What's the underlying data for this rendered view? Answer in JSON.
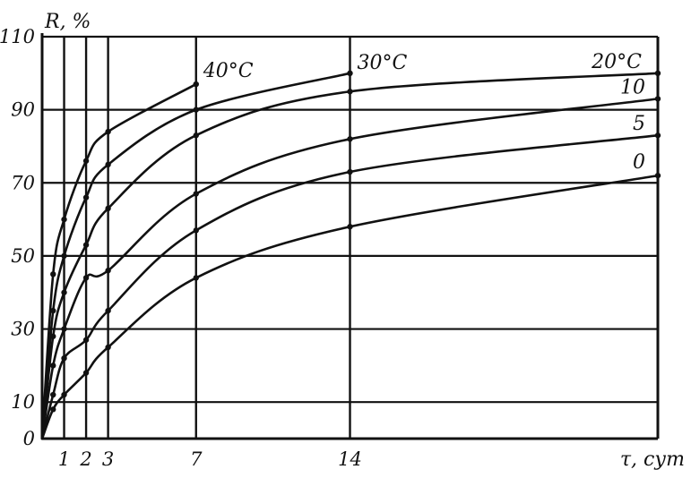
{
  "chart_data": {
    "type": "line",
    "title": "",
    "ylabel": "R, %",
    "xlabel": "τ, сут",
    "xlim": [
      0,
      28
    ],
    "ylim": [
      0,
      110
    ],
    "x_ticks": [
      1,
      2,
      3,
      7,
      14
    ],
    "x_tick_labels": [
      "1",
      "2",
      "3",
      "7",
      "14"
    ],
    "y_ticks": [
      0,
      10,
      30,
      50,
      70,
      90,
      110
    ],
    "y_tick_labels": [
      "0",
      "10",
      "30",
      "50",
      "70",
      "90",
      "110"
    ],
    "horizontal_grid": [
      10,
      30,
      50,
      70,
      90,
      110
    ],
    "vertical_grid": [
      1,
      2,
      3,
      7,
      14
    ],
    "grid": true,
    "series": [
      {
        "name": "40°C",
        "x": [
          0,
          0.5,
          1,
          2,
          3,
          7
        ],
        "y": [
          0,
          45,
          60,
          76,
          84,
          97
        ]
      },
      {
        "name": "30°C",
        "x": [
          0,
          0.5,
          1,
          2,
          3,
          7,
          14
        ],
        "y": [
          0,
          35,
          50,
          66,
          75,
          90,
          100
        ]
      },
      {
        "name": "20°C",
        "x": [
          0,
          0.5,
          1,
          2,
          3,
          7,
          14,
          28
        ],
        "y": [
          0,
          28,
          40,
          53,
          63,
          83,
          95,
          100
        ]
      },
      {
        "name": "10",
        "x": [
          0,
          0.5,
          1,
          2,
          3,
          7,
          14,
          28
        ],
        "y": [
          0,
          20,
          30,
          44,
          46,
          67,
          82,
          93
        ]
      },
      {
        "name": "5",
        "x": [
          0,
          0.5,
          1,
          2,
          3,
          7,
          14,
          28
        ],
        "y": [
          0,
          12,
          22,
          27,
          35,
          57,
          73,
          83
        ]
      },
      {
        "name": "0",
        "x": [
          0,
          0.5,
          1,
          2,
          3,
          7,
          14,
          28
        ],
        "y": [
          0,
          8,
          12,
          18,
          25,
          44,
          58,
          72
        ]
      }
    ],
    "series_label_anchors": [
      {
        "name": "40°C",
        "x": 7,
        "y": 97
      },
      {
        "name": "30°C",
        "x": 14,
        "y": 100
      },
      {
        "name": "20°C",
        "x": 28,
        "y": 100
      },
      {
        "name": "10",
        "x": 28,
        "y": 93
      },
      {
        "name": "5",
        "x": 28,
        "y": 83
      },
      {
        "name": "0",
        "x": 28,
        "y": 72
      }
    ]
  }
}
